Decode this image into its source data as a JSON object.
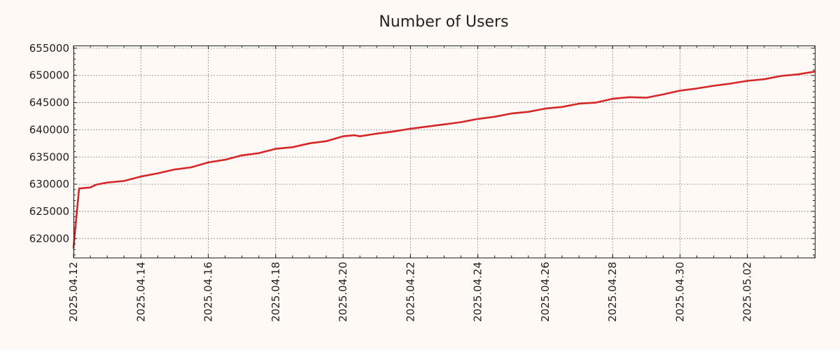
{
  "chart_data": {
    "type": "line",
    "title": "Number of Users",
    "xlabel": "",
    "ylabel": "",
    "x_type": "date",
    "xlim": [
      "2025-04-12",
      "2025-05-04"
    ],
    "ylim": [
      616500,
      655500
    ],
    "y_ticks": [
      620000,
      625000,
      630000,
      635000,
      640000,
      645000,
      650000,
      655000
    ],
    "x_ticks": [
      "2025.04.12",
      "2025.04.14",
      "2025.04.16",
      "2025.04.18",
      "2025.04.20",
      "2025.04.22",
      "2025.04.24",
      "2025.04.26",
      "2025.04.28",
      "2025.04.30",
      "2025.05.02"
    ],
    "grid": true,
    "legend": "none",
    "colors": {
      "line": "#d62728",
      "background": "#fff9f5",
      "grid": "#888888"
    },
    "series": [
      {
        "x": [
          "2025-04-12",
          "2025-04-12 04:00",
          "2025-04-12 12:00",
          "2025-04-12 16:00",
          "2025-04-13 00:00",
          "2025-04-13 12:00",
          "2025-04-14 00:00",
          "2025-04-14 12:00",
          "2025-04-15 00:00",
          "2025-04-15 12:00",
          "2025-04-16 00:00",
          "2025-04-16 12:00",
          "2025-04-17 00:00",
          "2025-04-17 12:00",
          "2025-04-18 00:00",
          "2025-04-18 12:00",
          "2025-04-19 00:00",
          "2025-04-19 12:00",
          "2025-04-20 00:00",
          "2025-04-20 08:00",
          "2025-04-20 12:00",
          "2025-04-21 00:00",
          "2025-04-21 12:00",
          "2025-04-22 00:00",
          "2025-04-22 12:00",
          "2025-04-23 00:00",
          "2025-04-23 12:00",
          "2025-04-24 00:00",
          "2025-04-24 12:00",
          "2025-04-25 00:00",
          "2025-04-25 12:00",
          "2025-04-26 00:00",
          "2025-04-26 12:00",
          "2025-04-27 00:00",
          "2025-04-27 12:00",
          "2025-04-28 00:00",
          "2025-04-28 12:00",
          "2025-04-29 00:00",
          "2025-04-29 12:00",
          "2025-04-30 00:00",
          "2025-04-30 12:00",
          "2025-05-01 00:00",
          "2025-05-01 12:00",
          "2025-05-02 00:00",
          "2025-05-02 12:00",
          "2025-05-03 00:00",
          "2025-05-03 12:00",
          "2025-05-04 00:00"
        ],
        "values": [
          618300,
          629200,
          629400,
          629900,
          630300,
          630600,
          631400,
          632000,
          632700,
          633100,
          634000,
          634500,
          635300,
          635700,
          636500,
          636800,
          637500,
          637900,
          638800,
          639000,
          638800,
          639300,
          639700,
          640200,
          640600,
          641000,
          641400,
          642000,
          642400,
          643000,
          643300,
          643900,
          644200,
          644800,
          645000,
          645700,
          646000,
          645900,
          646500,
          647200,
          647600,
          648100,
          648500,
          649000,
          649300,
          649900,
          650200,
          650700
        ]
      }
    ]
  }
}
